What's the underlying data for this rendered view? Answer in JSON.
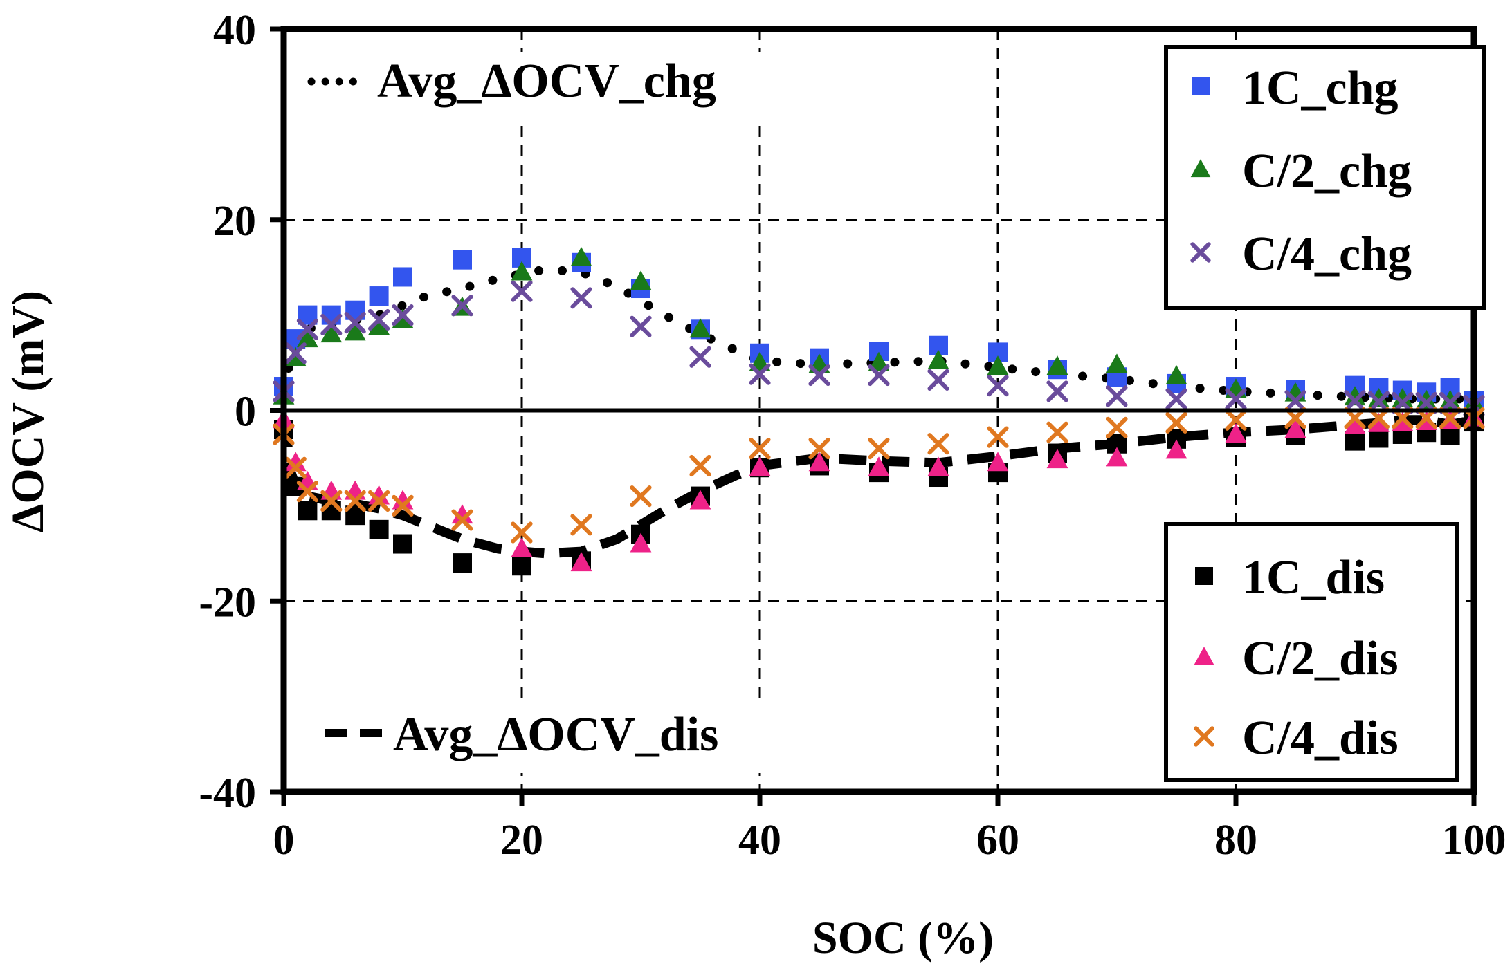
{
  "chart_data": {
    "type": "scatter",
    "xlabel": "SOC (%)",
    "ylabel": "ΔOCV (mV)",
    "xlim": [
      0,
      100
    ],
    "ylim": [
      -40,
      40
    ],
    "x_ticks": [
      "0",
      "20",
      "40",
      "60",
      "80",
      "100"
    ],
    "y_ticks": [
      "40",
      "20",
      "0",
      "-20",
      "-40"
    ],
    "x_tick_values": [
      0,
      20,
      40,
      60,
      80,
      100
    ],
    "y_tick_values": [
      40,
      20,
      0,
      -20,
      -40
    ],
    "grid": "dashed, major ticks",
    "legends": {
      "chg": {
        "placement": "top-right",
        "entries": [
          "1C_chg",
          "C/2_chg",
          "C/4_chg"
        ]
      },
      "dis": {
        "placement": "bottom-right",
        "entries": [
          "1C_dis",
          "C/2_dis",
          "C/4_dis"
        ]
      },
      "avg_chg": {
        "placement": "top-left",
        "label": "Avg_ΔOCV_chg"
      },
      "avg_dis": {
        "placement": "bottom-left",
        "label": "Avg_ΔOCV_dis"
      }
    },
    "series": [
      {
        "name": "1C_chg",
        "marker": "square",
        "color": "#3355ee",
        "x": [
          0,
          1,
          2,
          4,
          6,
          8,
          10,
          15,
          20,
          25,
          30,
          35,
          40,
          45,
          50,
          55,
          60,
          65,
          70,
          75,
          80,
          85,
          90,
          92,
          94,
          96,
          98,
          100
        ],
        "y": [
          2.5,
          7.5,
          10,
          10,
          10.5,
          12,
          14,
          15.8,
          16,
          15.5,
          12.8,
          8.5,
          6,
          5.5,
          6.2,
          6.8,
          6.1,
          4.3,
          3.5,
          2.8,
          2.5,
          2.2,
          2.6,
          2.4,
          2.1,
          1.9,
          2.4,
          1.0
        ]
      },
      {
        "name": "C/2_chg",
        "marker": "triangle",
        "color": "#1a7a1a",
        "x": [
          0,
          1,
          2,
          4,
          6,
          8,
          10,
          15,
          20,
          25,
          30,
          35,
          40,
          45,
          50,
          55,
          60,
          65,
          70,
          75,
          80,
          85,
          90,
          92,
          94,
          96,
          98,
          100
        ],
        "y": [
          1.5,
          5.5,
          7.5,
          8,
          8.2,
          8.8,
          9.5,
          10.8,
          14.5,
          16,
          13.5,
          8.5,
          5,
          4.8,
          5,
          5.2,
          4.6,
          4.6,
          4.8,
          3.6,
          2.2,
          1.8,
          1.4,
          1.2,
          1.2,
          1.0,
          1.0,
          0.8
        ]
      },
      {
        "name": "C/4_chg",
        "marker": "cross",
        "color": "#6a4c9c",
        "x": [
          0,
          1,
          2,
          4,
          6,
          8,
          10,
          15,
          20,
          25,
          30,
          35,
          40,
          45,
          50,
          55,
          60,
          65,
          70,
          75,
          80,
          85,
          90,
          92,
          94,
          96,
          98,
          100
        ],
        "y": [
          2,
          6,
          8.5,
          9,
          9.2,
          9.5,
          10,
          11,
          12.5,
          11.8,
          8.8,
          5.6,
          3.8,
          3.7,
          3.7,
          3.2,
          2.6,
          2,
          1.5,
          1.2,
          1.2,
          1.0,
          1.0,
          0.9,
          0.8,
          0.8,
          0.8,
          0.5
        ]
      },
      {
        "name": "1C_dis",
        "marker": "square",
        "color": "#000000",
        "x": [
          0,
          1,
          2,
          4,
          6,
          8,
          10,
          15,
          20,
          25,
          30,
          35,
          40,
          45,
          50,
          55,
          60,
          65,
          70,
          75,
          80,
          85,
          90,
          92,
          94,
          96,
          98,
          100
        ],
        "y": [
          -2,
          -8,
          -10.5,
          -10.5,
          -11,
          -12.5,
          -14,
          -16,
          -16.3,
          -15.8,
          -13,
          -9,
          -6,
          -5.8,
          -6.5,
          -7,
          -6.5,
          -4.5,
          -3.5,
          -3,
          -2.8,
          -2.6,
          -3.2,
          -2.9,
          -2.5,
          -2.3,
          -2.6,
          -1.2
        ]
      },
      {
        "name": "C/2_dis",
        "marker": "triangle",
        "color": "#ee2288",
        "x": [
          0,
          1,
          2,
          4,
          6,
          8,
          10,
          15,
          20,
          25,
          30,
          35,
          40,
          45,
          50,
          55,
          60,
          65,
          70,
          75,
          80,
          85,
          90,
          92,
          94,
          96,
          98,
          100
        ],
        "y": [
          -1,
          -5.5,
          -7.5,
          -8.5,
          -8.5,
          -9,
          -9.5,
          -11,
          -14.5,
          -16,
          -14,
          -9.5,
          -6,
          -5.5,
          -6,
          -6,
          -5.5,
          -5.2,
          -5,
          -4.2,
          -2.5,
          -2,
          -1.6,
          -1.4,
          -1.3,
          -1.2,
          -1.1,
          -0.8
        ]
      },
      {
        "name": "C/4_dis",
        "marker": "cross",
        "color": "#e07820",
        "x": [
          0,
          1,
          2,
          4,
          6,
          8,
          10,
          15,
          20,
          25,
          30,
          35,
          40,
          45,
          50,
          55,
          60,
          65,
          70,
          75,
          80,
          85,
          90,
          92,
          94,
          96,
          98,
          100
        ],
        "y": [
          -2.5,
          -6,
          -8.5,
          -9.5,
          -9.5,
          -9.5,
          -10,
          -11.5,
          -12.8,
          -12,
          -9,
          -5.8,
          -4,
          -4,
          -4,
          -3.5,
          -2.8,
          -2.3,
          -1.8,
          -1.3,
          -1,
          -0.8,
          -0.8,
          -0.8,
          -0.8,
          -0.8,
          -0.8,
          -0.8
        ]
      }
    ],
    "lines": [
      {
        "name": "Avg_ΔOCV_chg",
        "style": "dotted",
        "color": "#000000",
        "x": [
          0,
          0.5,
          1,
          2,
          4,
          6,
          8,
          10,
          12,
          15,
          18,
          20,
          22,
          25,
          28,
          30,
          32,
          35,
          38,
          40,
          45,
          50,
          55,
          60,
          65,
          70,
          75,
          80,
          85,
          90,
          95,
          100
        ],
        "y": [
          2,
          5,
          6.5,
          8.5,
          9.3,
          9.5,
          10,
          11,
          12,
          12.8,
          13.8,
          14.3,
          14.8,
          14.5,
          13,
          11.5,
          10,
          8,
          6.3,
          5.2,
          4.8,
          5,
          5.2,
          4.5,
          3.8,
          3.3,
          2.5,
          2,
          1.7,
          1.4,
          1.2,
          1.2
        ]
      },
      {
        "name": "Avg_ΔOCV_dis",
        "style": "dashed",
        "color": "#000000",
        "x": [
          0,
          0.3,
          0.6,
          1,
          2,
          4,
          6,
          8,
          10,
          12,
          15,
          18,
          20,
          22,
          25,
          28,
          30,
          32,
          35,
          38,
          40,
          45,
          50,
          55,
          60,
          65,
          70,
          75,
          80,
          85,
          90,
          92,
          94,
          96,
          98,
          100
        ],
        "y": [
          -1,
          -3.5,
          -6.5,
          -8,
          -9,
          -9.5,
          -9.8,
          -10.3,
          -11,
          -12,
          -13.5,
          -14.5,
          -14.8,
          -15,
          -14.8,
          -13.5,
          -12,
          -10.5,
          -8.5,
          -6.8,
          -5.8,
          -5,
          -5.3,
          -5.5,
          -4.8,
          -4,
          -3.5,
          -2.8,
          -2.3,
          -2,
          -1.5,
          -1.3,
          -1.0,
          -1.0,
          -1.5,
          -1.0
        ]
      }
    ]
  }
}
